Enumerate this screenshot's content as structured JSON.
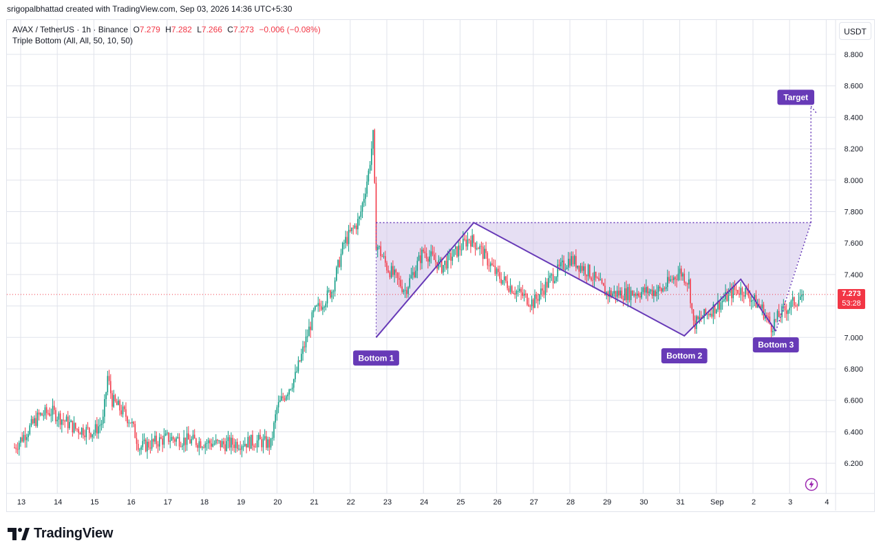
{
  "header": {
    "credit": "srigopalbhattad created with TradingView.com, Sep 03, 2026 14:36 UTC+5:30"
  },
  "legend": {
    "symbol": "AVAX / TetherUS · 1h · Binance",
    "open_label": "O",
    "open": "7.279",
    "high_label": "H",
    "high": "7.282",
    "low_label": "L",
    "low": "7.266",
    "close_label": "C",
    "close": "7.273",
    "change": "−0.006 (−0.08%)",
    "indicator": "Triple Bottom (All, All, 50, 10, 50)"
  },
  "currency_button": "USDT",
  "last_price": {
    "value": "7.273",
    "countdown": "53:28"
  },
  "brand": {
    "name": "TradingView"
  },
  "icons": {
    "logo": "tradingview-logo-icon",
    "bolt": "lightning-bolt-icon"
  },
  "colors": {
    "up": "#089981",
    "down": "#f23645",
    "pattern": "#673ab7",
    "pattern_fill": "#d1c4e9",
    "grid": "#e0e3eb",
    "label_bg": "#673ab7"
  },
  "chart_data": {
    "type": "candlestick",
    "symbol": "AVAX / TetherUS",
    "interval": "1h",
    "exchange": "Binance",
    "ylim": [
      6.05,
      8.95
    ],
    "y_ticks": [
      "6.200",
      "6.400",
      "6.600",
      "6.800",
      "7.000",
      "7.200",
      "7.400",
      "7.600",
      "7.800",
      "8.000",
      "8.200",
      "8.400",
      "8.600",
      "8.800"
    ],
    "x_ticks": [
      "13",
      "14",
      "15",
      "16",
      "17",
      "18",
      "19",
      "20",
      "21",
      "22",
      "23",
      "24",
      "25",
      "26",
      "27",
      "28",
      "29",
      "30",
      "31",
      "Sep",
      "2",
      "3",
      "4"
    ],
    "close_path": [
      {
        "t": "Aug 12 20:00",
        "v": 6.3
      },
      {
        "t": "Aug 13 12:00",
        "v": 6.5
      },
      {
        "t": "Aug 13 20:00",
        "v": 6.53
      },
      {
        "t": "Aug 14 12:00",
        "v": 6.42
      },
      {
        "t": "Aug 15 00:00",
        "v": 6.4
      },
      {
        "t": "Aug 15 06:00",
        "v": 6.47
      },
      {
        "t": "Aug 15 09:00",
        "v": 6.75
      },
      {
        "t": "Aug 15 12:00",
        "v": 6.6
      },
      {
        "t": "Aug 16 00:00",
        "v": 6.47
      },
      {
        "t": "Aug 16 06:00",
        "v": 6.3
      },
      {
        "t": "Aug 17 00:00",
        "v": 6.36
      },
      {
        "t": "Aug 18 12:00",
        "v": 6.32
      },
      {
        "t": "Aug 19 12:00",
        "v": 6.34
      },
      {
        "t": "Aug 19 20:00",
        "v": 6.32
      },
      {
        "t": "Aug 20 00:00",
        "v": 6.55
      },
      {
        "t": "Aug 20 12:00",
        "v": 6.75
      },
      {
        "t": "Aug 21 00:00",
        "v": 7.15
      },
      {
        "t": "Aug 21 12:00",
        "v": 7.3
      },
      {
        "t": "Aug 21 20:00",
        "v": 7.6
      },
      {
        "t": "Aug 22 06:00",
        "v": 7.75
      },
      {
        "t": "Aug 22 12:00",
        "v": 8.05
      },
      {
        "t": "Aug 22 15:00",
        "v": 8.28
      },
      {
        "t": "Aug 22 17:00",
        "v": 7.6
      },
      {
        "t": "Aug 23 00:00",
        "v": 7.45
      },
      {
        "t": "Aug 23 12:00",
        "v": 7.3
      },
      {
        "t": "Aug 24 00:00",
        "v": 7.55
      },
      {
        "t": "Aug 24 12:00",
        "v": 7.45
      },
      {
        "t": "Aug 25 06:00",
        "v": 7.63
      },
      {
        "t": "Aug 25 12:00",
        "v": 7.58
      },
      {
        "t": "Aug 26 00:00",
        "v": 7.4
      },
      {
        "t": "Aug 26 12:00",
        "v": 7.3
      },
      {
        "t": "Aug 27 00:00",
        "v": 7.22
      },
      {
        "t": "Aug 27 12:00",
        "v": 7.38
      },
      {
        "t": "Aug 28 00:00",
        "v": 7.5
      },
      {
        "t": "Aug 28 12:00",
        "v": 7.42
      },
      {
        "t": "Aug 29 00:00",
        "v": 7.28
      },
      {
        "t": "Aug 29 12:00",
        "v": 7.28
      },
      {
        "t": "Aug 30 12:00",
        "v": 7.3
      },
      {
        "t": "Aug 31 00:00",
        "v": 7.42
      },
      {
        "t": "Aug 31 06:00",
        "v": 7.35
      },
      {
        "t": "Aug 31 09:00",
        "v": 7.08
      },
      {
        "t": "Sep 01 00:00",
        "v": 7.2
      },
      {
        "t": "Sep 01 12:00",
        "v": 7.3
      },
      {
        "t": "Sep 01 18:00",
        "v": 7.3
      },
      {
        "t": "Sep 02 06:00",
        "v": 7.18
      },
      {
        "t": "Sep 02 12:00",
        "v": 7.07
      },
      {
        "t": "Sep 02 18:00",
        "v": 7.15
      },
      {
        "t": "Sep 03 00:00",
        "v": 7.2
      },
      {
        "t": "Sep 03 09:00",
        "v": 7.273
      }
    ],
    "last_price": 7.273,
    "pattern": {
      "name": "Triple Bottom",
      "points": [
        {
          "label": "Bottom 1",
          "t": "Aug 22 17:00",
          "v": 7.0
        },
        {
          "t": "Aug 25 09:00",
          "v": 7.73
        },
        {
          "label": "Bottom 2",
          "t": "Aug 31 03:00",
          "v": 7.01
        },
        {
          "t": "Sep 01 16:00",
          "v": 7.37
        },
        {
          "label": "Bottom 3",
          "t": "Sep 02 15:00",
          "v": 7.04
        }
      ],
      "neckline": 7.73,
      "target": {
        "label": "Target",
        "v": 8.47
      },
      "labels": [
        "Bottom 1",
        "Bottom 2",
        "Bottom 3",
        "Target"
      ]
    }
  }
}
